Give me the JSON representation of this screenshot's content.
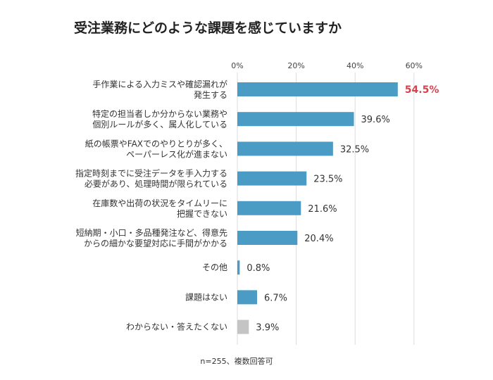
{
  "chart_data": {
    "type": "bar",
    "orientation": "horizontal",
    "title": "受注業務にどのような課題を感じていますか",
    "xlim": [
      0,
      60
    ],
    "xticks": [
      "0%",
      "20%",
      "40%",
      "60%"
    ],
    "tick_values": [
      0,
      20,
      40,
      60
    ],
    "grid": true,
    "categories": [
      [
        "手作業による入力ミスや確認漏れが",
        "発生する"
      ],
      [
        "特定の担当者しか分からない業務や",
        "個別ルールが多く、属人化している"
      ],
      [
        "紙の帳票やFAXでのやりとりが多く、",
        "ペーパーレス化が進まない"
      ],
      [
        "指定時刻までに受注データを手入力する",
        "必要があり、処理時間が限られている"
      ],
      [
        "在庫数や出荷の状況をタイムリーに",
        "把握できない"
      ],
      [
        "短納期・小口・多品種発注など、得意先",
        "からの細かな要望対応に手間がかかる"
      ],
      [
        "その他"
      ],
      [
        "課題はない"
      ],
      [
        "わからない・答えたくない"
      ]
    ],
    "values": [
      54.5,
      39.6,
      32.5,
      23.5,
      21.6,
      20.4,
      0.8,
      6.7,
      3.9
    ],
    "value_labels": [
      "54.5%",
      "39.6%",
      "32.5%",
      "23.5%",
      "21.6%",
      "20.4%",
      "0.8%",
      "6.7%",
      "3.9%"
    ],
    "highlight_index": 0,
    "gray_index": 8,
    "colors": {
      "bar": "#4a9cc4",
      "gray": "#c4c4c4",
      "highlight_text": "#d8414f",
      "grid": "#dddddd"
    },
    "note": "n=255、複数回答可"
  }
}
